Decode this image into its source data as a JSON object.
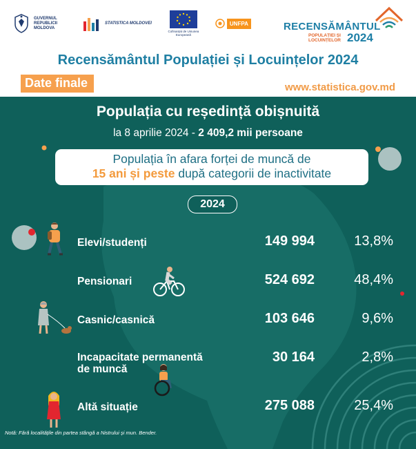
{
  "header": {
    "gov_logo_text": "GUVERNUL REPUBLICII MOLDOVA",
    "stat_logo_text": "STATISTICA MOLDOVEI",
    "eu_logo_text": "Cofinanțat de Uniunea Europeană",
    "unfpa_logo_text": "UNFPA",
    "census_logo": {
      "title": "RECENSĂMÂNTUL",
      "subtitle_line1": "POPULAȚIEI ȘI",
      "subtitle_line2": "LOCUINȚELOR",
      "year": "2024"
    },
    "main_title": "Recensământul Populației și Locuințelor 2024",
    "tag": "Date finale",
    "website": "www.statistica.gov.md"
  },
  "infographic": {
    "title": "Populația cu reședință obișnuită",
    "date_text": "la 8 aprilie 2024 - ",
    "total_text": "2 409,2 mii persoane",
    "subtitle_line1": "Populația în afara forței de muncă de",
    "subtitle_highlight": "15 ani și peste",
    "subtitle_line2_rest": " după categorii de inactivitate",
    "year": "2024",
    "rows": [
      {
        "label": "Elevi/studenți",
        "value": "149 994",
        "percent": "13,8%"
      },
      {
        "label": "Pensionari",
        "value": "524 692",
        "percent": "48,4%"
      },
      {
        "label": "Casnic/casnică",
        "value": "103 646",
        "percent": "9,6%"
      },
      {
        "label_line1": "Incapacitate permanentă",
        "label_line2": "de muncă",
        "value": "30 164",
        "percent": "2,8%"
      },
      {
        "label": "Altă situație",
        "value": "275 088",
        "percent": "25,4%"
      }
    ],
    "note": "Notă: Fără localitățile din partea stângă a Nistrului și mun. Bender."
  },
  "colors": {
    "teal_bg": "#0f605a",
    "title_blue": "#1f7fa3",
    "accent_orange": "#f6a04d"
  }
}
